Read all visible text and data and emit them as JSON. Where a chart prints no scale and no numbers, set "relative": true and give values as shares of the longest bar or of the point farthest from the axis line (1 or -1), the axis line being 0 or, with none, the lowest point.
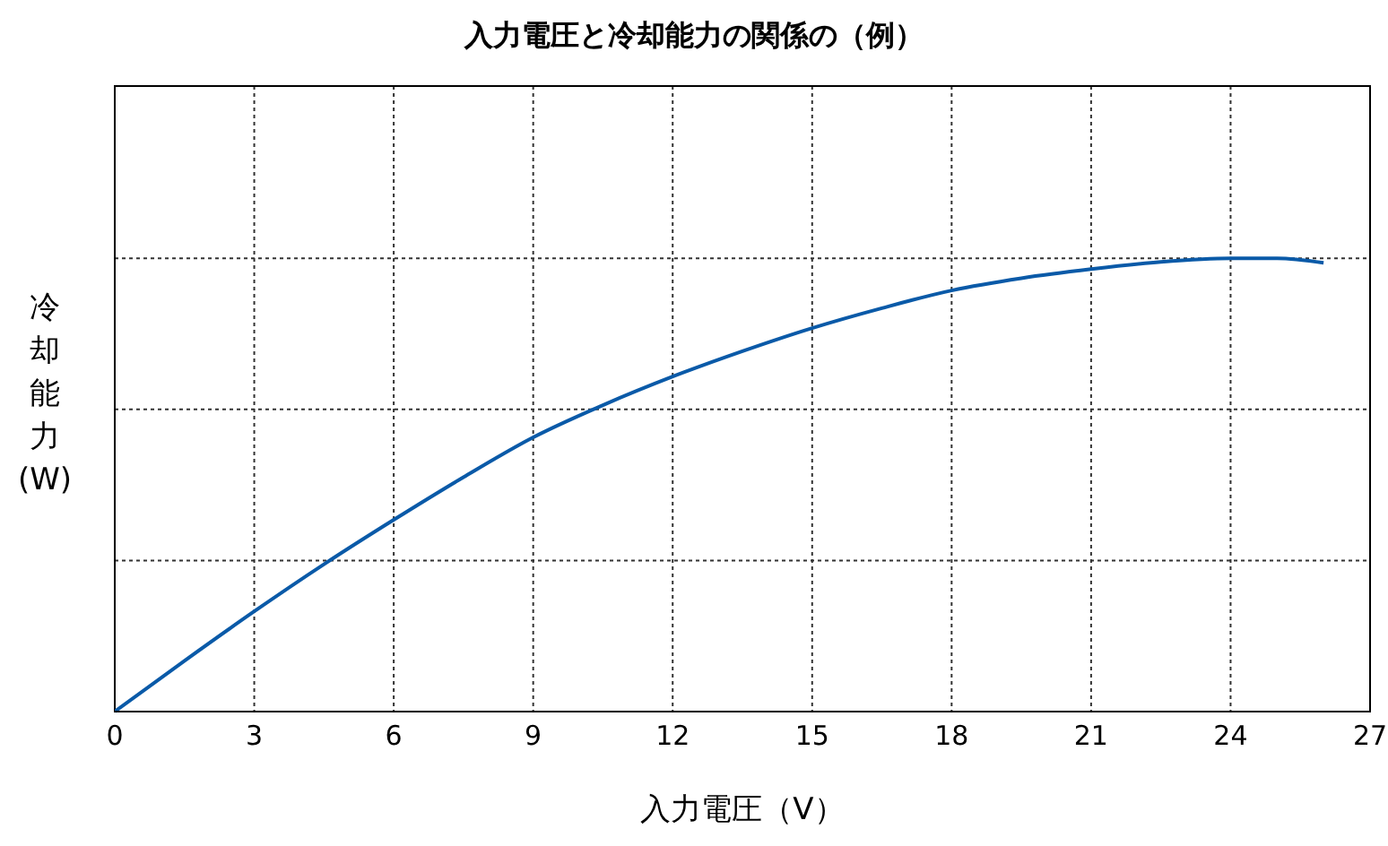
{
  "chart_data": {
    "type": "line",
    "title": "入力電圧と冷却能力の関係の（例）",
    "xlabel": "入力電圧（V）",
    "ylabel": "冷却能力(W)",
    "relative": true,
    "x": [
      0,
      1.5,
      3,
      4.5,
      6,
      7.5,
      9,
      10.5,
      12,
      13.5,
      15,
      16.5,
      18,
      19.5,
      21,
      22.5,
      24,
      25,
      26
    ],
    "series": [
      {
        "color": "#0a5aa8",
        "values": [
          0,
          0.112,
          0.221,
          0.325,
          0.423,
          0.517,
          0.605,
          0.676,
          0.739,
          0.795,
          0.846,
          0.89,
          0.929,
          0.956,
          0.976,
          0.992,
          1,
          1,
          0.99
        ]
      }
    ],
    "xlim": [
      0,
      27
    ],
    "xticks": [
      0,
      3,
      6,
      9,
      12,
      15,
      18,
      21,
      24,
      27
    ],
    "grid": true,
    "tick_labels": "x",
    "marker": "none",
    "line_style": "solid",
    "legend": false
  }
}
